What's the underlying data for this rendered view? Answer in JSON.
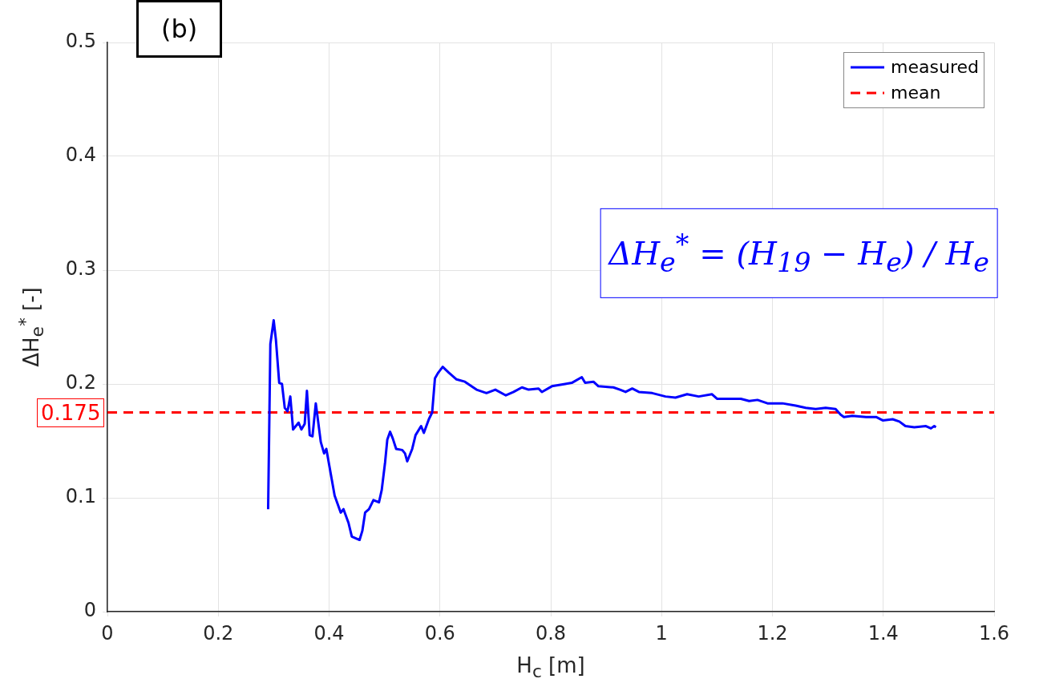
{
  "chart_data": {
    "type": "line",
    "xlabel": "H$_{c}$ [m]",
    "ylabel": "ΔH$_{e}$$^{*}$ [-]",
    "xlim": [
      0,
      1.6
    ],
    "xticks": [
      0,
      0.2,
      0.4,
      0.6,
      0.8,
      1,
      1.2,
      1.4,
      1.6
    ],
    "ylim": [
      0,
      0.5
    ],
    "yticks": [
      0,
      0.1,
      0.2,
      0.3,
      0.4,
      0.5
    ],
    "grid": true,
    "legend": "top right",
    "annotations": [
      "(b)",
      "ΔH$_{e}$$^{*}$ = (H$_{19}$ − H$_{e}$) / H$_{e}$",
      {
        "text": "0.175",
        "x": 0,
        "y": 0.175
      }
    ],
    "series": [
      {
        "name": "measured",
        "color": "#0000ff",
        "line_style": "solid",
        "x": [
          0.29,
          0.294,
          0.3,
          0.304,
          0.31,
          0.315,
          0.32,
          0.325,
          0.33,
          0.335,
          0.345,
          0.35,
          0.356,
          0.36,
          0.365,
          0.37,
          0.376,
          0.385,
          0.391,
          0.395,
          0.41,
          0.421,
          0.426,
          0.435,
          0.441,
          0.455,
          0.46,
          0.465,
          0.472,
          0.48,
          0.49,
          0.495,
          0.501,
          0.505,
          0.51,
          0.515,
          0.521,
          0.532,
          0.537,
          0.541,
          0.55,
          0.556,
          0.566,
          0.571,
          0.58,
          0.586,
          0.591,
          0.597,
          0.605,
          0.616,
          0.63,
          0.645,
          0.666,
          0.684,
          0.7,
          0.719,
          0.733,
          0.748,
          0.76,
          0.778,
          0.784,
          0.802,
          0.826,
          0.838,
          0.856,
          0.862,
          0.877,
          0.886,
          0.913,
          0.925,
          0.935,
          0.947,
          0.959,
          0.983,
          1.007,
          1.025,
          1.046,
          1.067,
          1.091,
          1.1,
          1.121,
          1.143,
          1.158,
          1.173,
          1.191,
          1.218,
          1.242,
          1.26,
          1.278,
          1.296,
          1.314,
          1.323,
          1.329,
          1.344,
          1.369,
          1.387,
          1.399,
          1.417,
          1.429,
          1.44,
          1.456,
          1.477,
          1.486,
          1.492,
          1.495
        ],
        "values": [
          0.09,
          0.235,
          0.256,
          0.239,
          0.201,
          0.2,
          0.179,
          0.176,
          0.189,
          0.16,
          0.166,
          0.16,
          0.165,
          0.194,
          0.155,
          0.154,
          0.183,
          0.149,
          0.139,
          0.143,
          0.102,
          0.087,
          0.09,
          0.078,
          0.066,
          0.063,
          0.071,
          0.087,
          0.09,
          0.098,
          0.096,
          0.107,
          0.131,
          0.151,
          0.158,
          0.152,
          0.143,
          0.142,
          0.139,
          0.132,
          0.143,
          0.155,
          0.163,
          0.157,
          0.169,
          0.175,
          0.205,
          0.21,
          0.215,
          0.21,
          0.204,
          0.202,
          0.195,
          0.192,
          0.195,
          0.19,
          0.193,
          0.197,
          0.195,
          0.196,
          0.193,
          0.198,
          0.2,
          0.201,
          0.206,
          0.201,
          0.202,
          0.198,
          0.197,
          0.195,
          0.193,
          0.196,
          0.193,
          0.192,
          0.189,
          0.188,
          0.191,
          0.189,
          0.191,
          0.187,
          0.187,
          0.187,
          0.185,
          0.186,
          0.183,
          0.183,
          0.181,
          0.179,
          0.178,
          0.179,
          0.178,
          0.173,
          0.171,
          0.172,
          0.171,
          0.171,
          0.168,
          0.169,
          0.167,
          0.163,
          0.162,
          0.163,
          0.161,
          0.163,
          0.162
        ]
      },
      {
        "name": "mean",
        "color": "#ff0000",
        "line_style": "dashed",
        "x": [
          0,
          1.6
        ],
        "values": [
          0.175,
          0.175
        ]
      }
    ]
  }
}
